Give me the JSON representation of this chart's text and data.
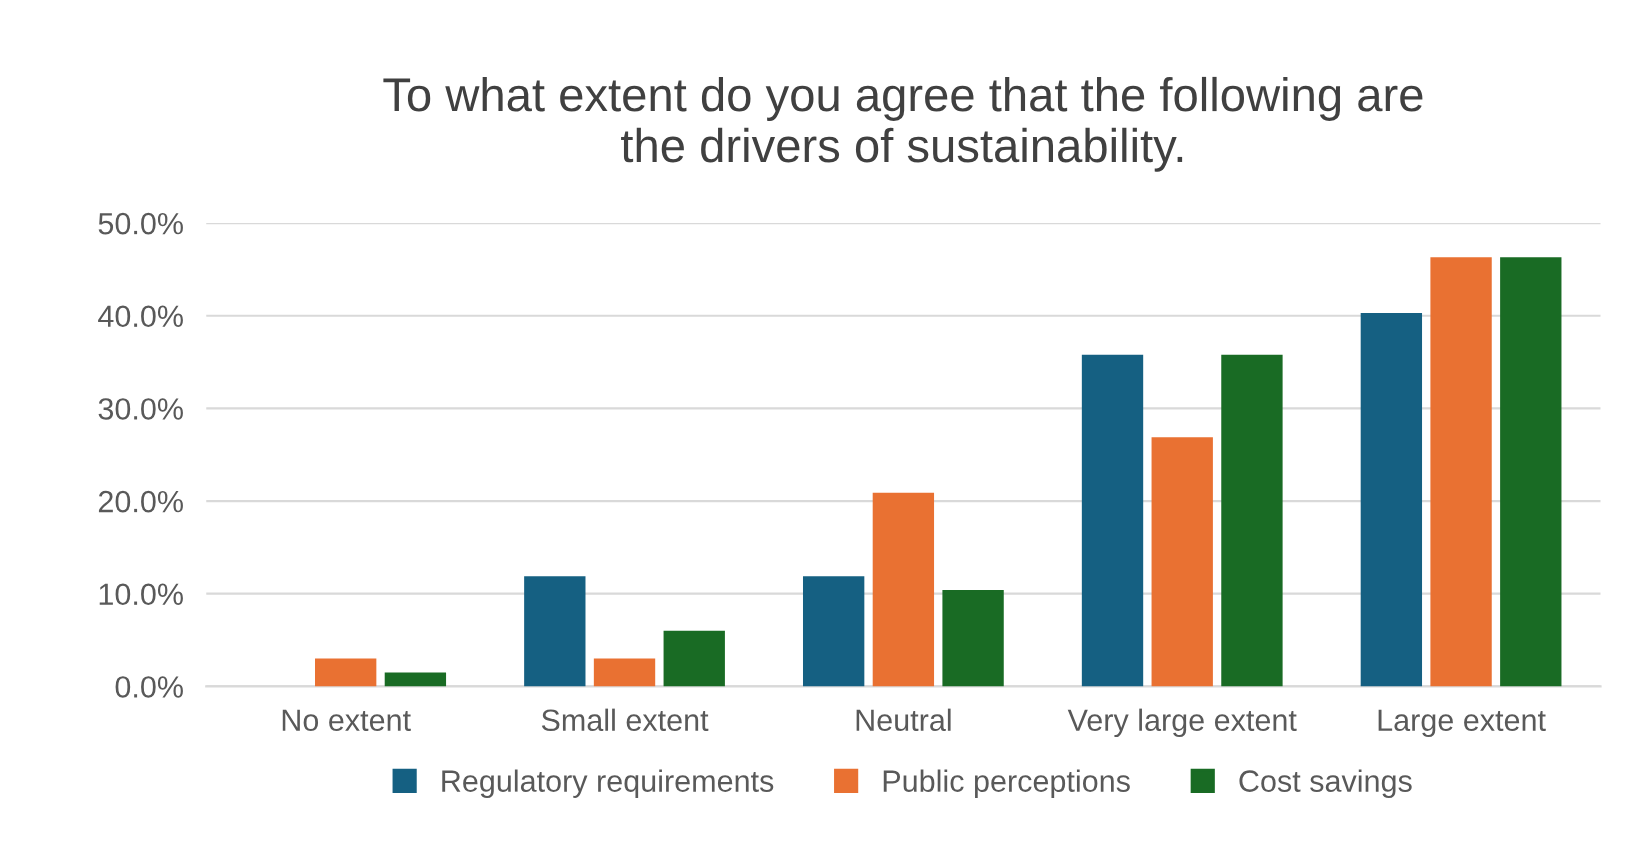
{
  "chart_data": {
    "type": "bar",
    "title": "To what extent do you agree that the following are\nthe drivers of sustainability.",
    "categories": [
      "No extent",
      "Small extent",
      "Neutral",
      "Very large extent",
      "Large extent"
    ],
    "series": [
      {
        "name": "Regulatory requirements",
        "color": "#156082",
        "values": [
          0,
          11.9,
          11.9,
          35.8,
          40.3
        ]
      },
      {
        "name": "Public perceptions",
        "color": "#e97132",
        "values": [
          3.0,
          3.0,
          20.9,
          26.9,
          46.3
        ]
      },
      {
        "name": "Cost savings",
        "color": "#196b24",
        "values": [
          1.5,
          6.0,
          10.4,
          35.8,
          46.3
        ]
      }
    ],
    "ylim": [
      0,
      50
    ],
    "yticks": [
      {
        "value": 0,
        "label": "0.0%"
      },
      {
        "value": 10,
        "label": "10.0%"
      },
      {
        "value": 20,
        "label": "20.0%"
      },
      {
        "value": 30,
        "label": "30.0%"
      },
      {
        "value": 40,
        "label": "40.0%"
      },
      {
        "value": 50,
        "label": "50.0%"
      }
    ],
    "grid": "y",
    "legend": "bottom"
  }
}
